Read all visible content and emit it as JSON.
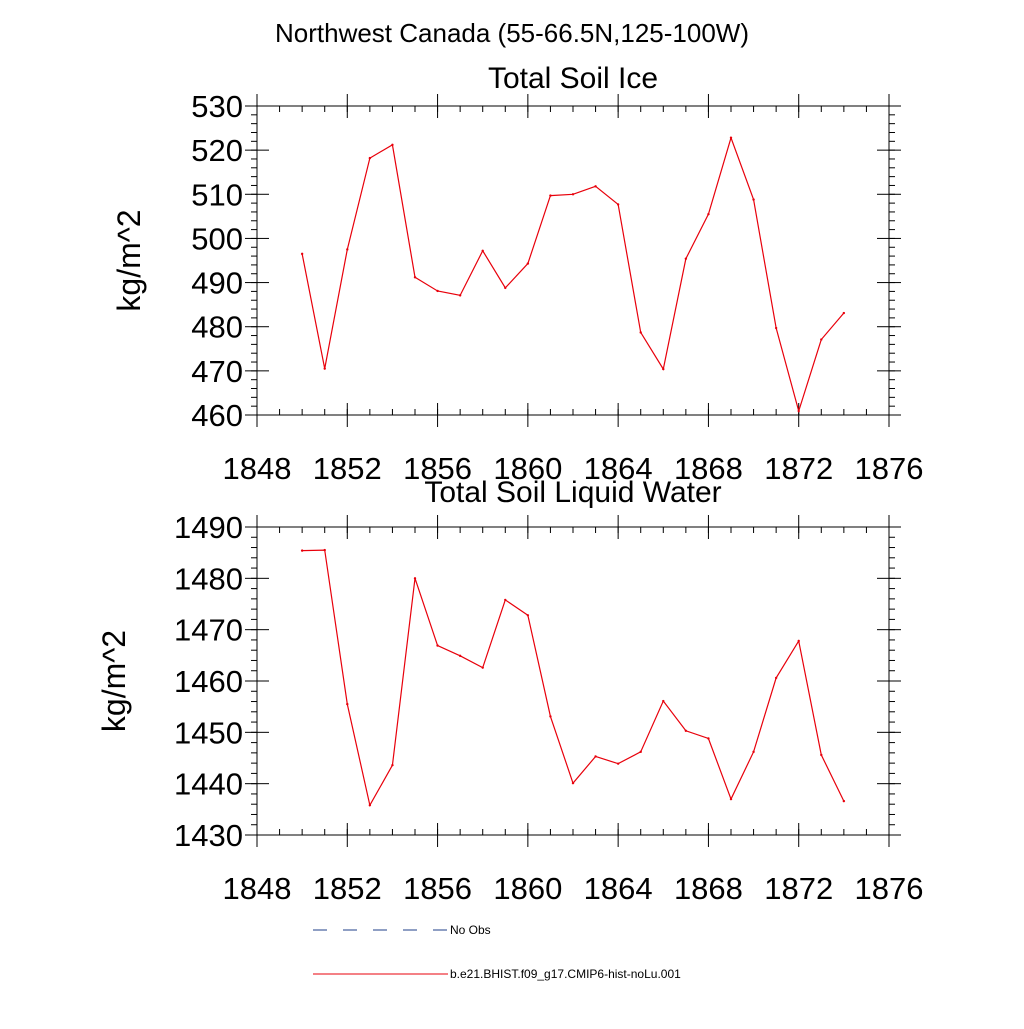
{
  "page_title": "Northwest Canada (55-66.5N,125-100W)",
  "colors": {
    "model_line": "#e8000b",
    "obs_line": "#1f3f8a",
    "axis": "#000000"
  },
  "legend": [
    {
      "label": "No Obs",
      "style": "dashed",
      "color": "#1f3f8a"
    },
    {
      "label": "b.e21.BHIST.f09_g17.CMIP6-hist-noLu.001",
      "style": "solid",
      "color": "#e8000b"
    }
  ],
  "chart_data": [
    {
      "type": "line",
      "title": "Total Soil Ice",
      "ylabel": "kg/m^2",
      "xlabel": "",
      "xlim": [
        1848,
        1876
      ],
      "ylim": [
        460,
        530
      ],
      "xticks": [
        1848,
        1852,
        1856,
        1860,
        1864,
        1868,
        1872,
        1876
      ],
      "yticks": [
        460,
        470,
        480,
        490,
        500,
        510,
        520,
        530
      ],
      "grid": false,
      "series": [
        {
          "x": [
            1850,
            1851,
            1852,
            1853,
            1854,
            1855,
            1856,
            1857,
            1858,
            1859,
            1860,
            1861,
            1862,
            1863,
            1864,
            1865,
            1866,
            1867,
            1868,
            1869,
            1870,
            1871,
            1872,
            1873,
            1874
          ],
          "values": [
            496.5,
            470.5,
            497.5,
            518.2,
            521.2,
            491.2,
            488.1,
            487.1,
            497.2,
            488.8,
            494.3,
            509.7,
            510.0,
            511.8,
            507.7,
            478.7,
            470.4,
            495.4,
            505.5,
            522.8,
            508.8,
            479.7,
            460.9,
            477.1,
            483.1
          ]
        }
      ]
    },
    {
      "type": "line",
      "title": "Total Soil Liquid Water",
      "ylabel": "kg/m^2",
      "xlabel": "",
      "xlim": [
        1848,
        1876
      ],
      "ylim": [
        1430,
        1490
      ],
      "xticks": [
        1848,
        1852,
        1856,
        1860,
        1864,
        1868,
        1872,
        1876
      ],
      "yticks": [
        1430,
        1440,
        1450,
        1460,
        1470,
        1480,
        1490
      ],
      "grid": false,
      "series": [
        {
          "x": [
            1850,
            1851,
            1852,
            1853,
            1854,
            1855,
            1856,
            1857,
            1858,
            1859,
            1860,
            1861,
            1862,
            1863,
            1864,
            1865,
            1866,
            1867,
            1868,
            1869,
            1870,
            1871,
            1872,
            1873,
            1874
          ],
          "values": [
            1485.4,
            1485.5,
            1455.5,
            1435.8,
            1443.6,
            1480.0,
            1466.9,
            1464.9,
            1462.6,
            1475.8,
            1472.8,
            1453.1,
            1440.1,
            1445.3,
            1443.9,
            1446.2,
            1456.1,
            1450.3,
            1448.8,
            1437.0,
            1446.2,
            1460.6,
            1467.8,
            1445.6,
            1436.6
          ]
        }
      ]
    }
  ]
}
